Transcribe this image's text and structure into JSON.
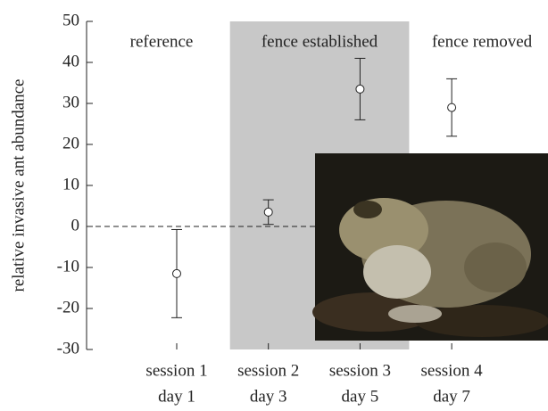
{
  "chart_data": {
    "type": "errorbar",
    "ylabel": "relative invasive ant abundance",
    "categories": [
      [
        "session 1",
        "day 1"
      ],
      [
        "session 2",
        "day 3"
      ],
      [
        "session 3",
        "day 5"
      ],
      [
        "session 4",
        "day 7"
      ]
    ],
    "values": [
      -11.5,
      3.5,
      33.5,
      29
    ],
    "errors": [
      10.75,
      3,
      7.5,
      7
    ],
    "annotations": [
      "reference",
      "fence established",
      "fence removed"
    ],
    "shaded_categories": [
      1,
      2
    ],
    "shade_color": "#c8c8c8",
    "zero_line": true,
    "ylim": [
      -30,
      50
    ],
    "yticks": [
      -30,
      -20,
      -10,
      0,
      10,
      20,
      30,
      40,
      50
    ]
  }
}
